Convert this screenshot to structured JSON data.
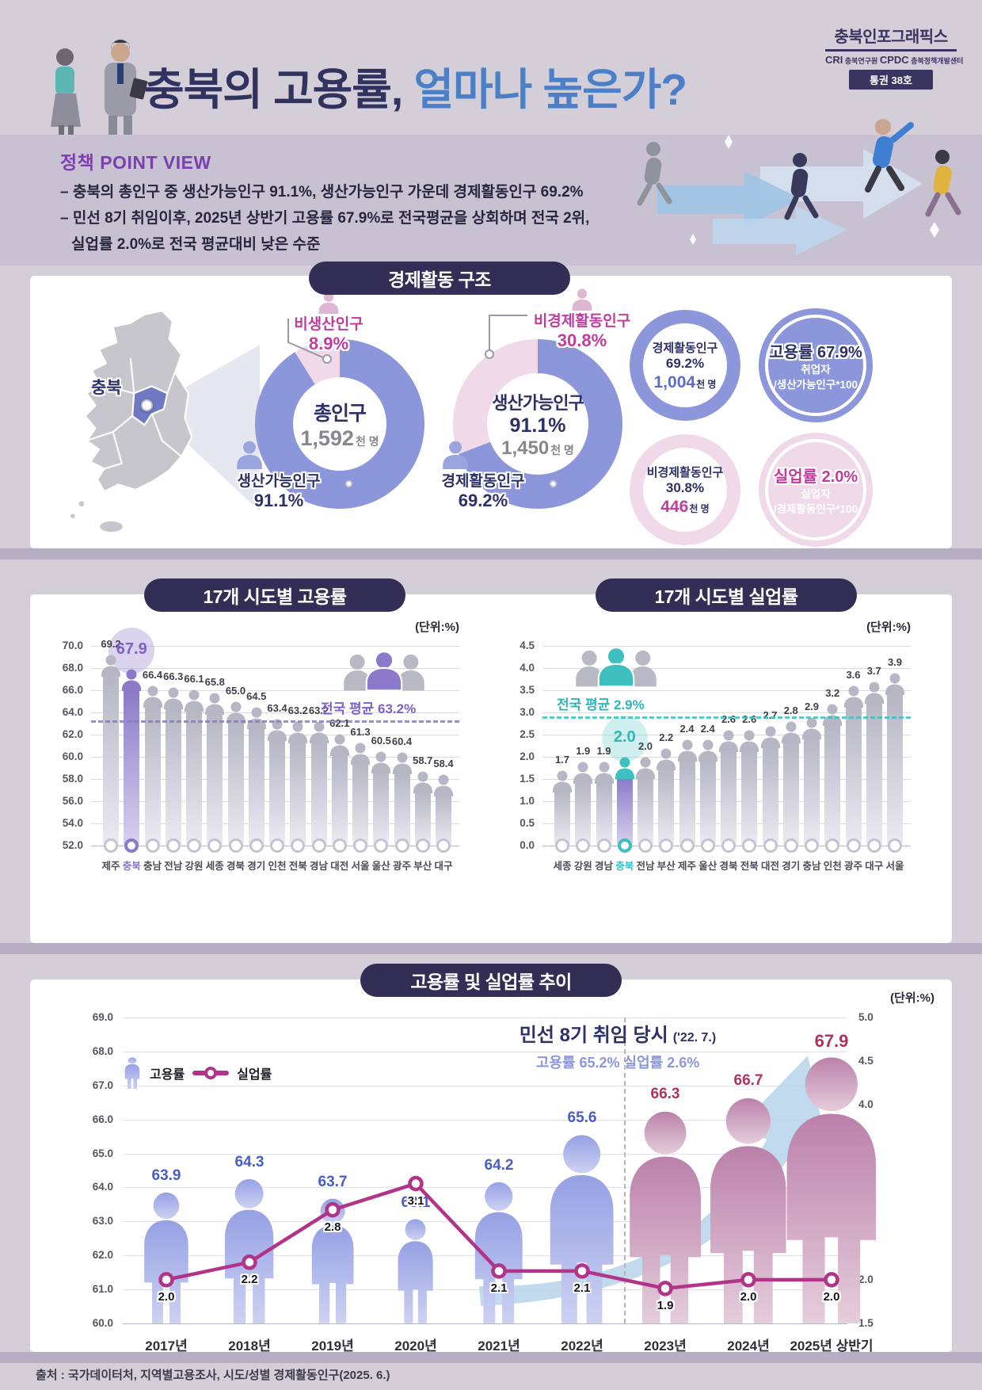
{
  "header": {
    "title_dark": "충북의 고용률,",
    "title_blue": " 얼마나 높은가?",
    "logo_title": "충북인포그래픽스",
    "logo_cri": "CRI",
    "logo_cri_sub": "충북연구원",
    "logo_cpdc": "CPDC",
    "logo_cpdc_sub": "충북정책개발센터",
    "issue_badge": "통권 38호"
  },
  "policy": {
    "heading": "정책 POINT VIEW",
    "lines": [
      "– 충북의 총인구 중 생산가능인구 91.1%, 생산가능인구 가운데 경제활동인구 69.2%",
      "– 민선 8기 취임이후, 2025년 상반기 고용률 67.9%로 전국평균을 상회하며 전국 2위,",
      "실업률 2.0%로 전국 평균대비 낮은 수준"
    ]
  },
  "structure": {
    "section_title": "경제활동 구조",
    "map_label": "충북",
    "donut_total": {
      "center_title": "총인구",
      "center_value": "1,592",
      "center_unit": "천 명",
      "pink_label": "비생산인구",
      "pink_value": "8.9%",
      "pink_pct": 8.9,
      "blue_label": "생산가능인구",
      "blue_value": "91.1%",
      "blue_pct": 91.1
    },
    "donut_working": {
      "center_title": "생산가능인구",
      "center_pct": "91.1%",
      "center_value": "1,450",
      "center_unit": "천 명",
      "pink_label": "비경제활동인구",
      "pink_value": "30.8%",
      "pink_pct": 30.8,
      "blue_label": "경제활동인구",
      "blue_value": "69.2%",
      "blue_pct": 69.2
    },
    "stats": [
      {
        "label": "경제활동인구",
        "pct": "69.2%",
        "value": "1,004",
        "unit": "천 명"
      },
      {
        "title": "고용률 67.9%",
        "sub1": "취업자",
        "sub2": "/생산가능인구*100"
      },
      {
        "label": "비경제활동인구",
        "pct": "30.8%",
        "value": "446",
        "unit": "천 명"
      },
      {
        "title": "실업률 2.0%",
        "sub1": "실업자",
        "sub2": "/경제활동인구*100"
      }
    ]
  },
  "chart_data": [
    {
      "type": "bar",
      "title": "17개 시도별 고용률",
      "unit_label": "(단위:%)",
      "categories": [
        "제주",
        "충북",
        "충남",
        "전남",
        "강원",
        "세종",
        "경북",
        "경기",
        "인천",
        "전북",
        "경남",
        "대전",
        "서울",
        "울산",
        "광주",
        "부산",
        "대구"
      ],
      "values": [
        69.2,
        67.9,
        66.4,
        66.3,
        66.1,
        65.8,
        65.0,
        64.5,
        63.4,
        63.2,
        63.2,
        62.1,
        61.3,
        60.5,
        60.4,
        58.7,
        58.4
      ],
      "highlight": "충북",
      "average": {
        "value": 63.2,
        "label": "전국 평균 63.2%"
      },
      "ylim": [
        52.0,
        70.0
      ],
      "ystep": 2.0,
      "grid": true,
      "legend_position": "none"
    },
    {
      "type": "bar",
      "title": "17개 시도별 실업률",
      "unit_label": "(단위:%)",
      "categories": [
        "세종",
        "강원",
        "경남",
        "충북",
        "전남",
        "부산",
        "제주",
        "울산",
        "경북",
        "전북",
        "대전",
        "경기",
        "충남",
        "인천",
        "광주",
        "대구",
        "서울"
      ],
      "values": [
        1.7,
        1.9,
        1.9,
        2.0,
        2.0,
        2.2,
        2.4,
        2.4,
        2.6,
        2.6,
        2.7,
        2.8,
        2.9,
        3.2,
        3.6,
        3.7,
        3.9
      ],
      "highlight": "충북",
      "average": {
        "value": 2.9,
        "label": "전국 평균 2.9%"
      },
      "ylim": [
        0.0,
        4.5
      ],
      "ystep": 0.5,
      "grid": true,
      "legend_position": "none"
    },
    {
      "type": "mixed",
      "title": "고용률 및 실업률 추이",
      "unit_label": "(단위:%)",
      "categories": [
        "2017년",
        "2018년",
        "2019년",
        "2020년",
        "2021년",
        "2022년",
        "2023년",
        "2024년",
        "2025년 상반기"
      ],
      "series": [
        {
          "name": "고용률",
          "type": "pictogram-bar",
          "axis": "left",
          "values": [
            63.9,
            64.3,
            63.7,
            63.1,
            64.2,
            65.6,
            66.3,
            66.7,
            67.9
          ]
        },
        {
          "name": "실업률",
          "type": "line",
          "axis": "right",
          "values": [
            2.0,
            2.2,
            2.8,
            3.1,
            2.1,
            2.1,
            1.9,
            2.0,
            2.0
          ]
        }
      ],
      "left_ylim": [
        60.0,
        69.0
      ],
      "left_ystep": 1.0,
      "right_ylim": [
        1.5,
        5.0
      ],
      "right_ystep": 0.5,
      "annotation": {
        "title": "민선 8기 취임 당시",
        "date": "('22. 7.)",
        "sub": "고용률 65.2% 실업률 2.6%"
      },
      "phase_split_after": "2022년",
      "legend": [
        "고용률",
        "실업률"
      ],
      "grid": true
    }
  ],
  "footer": {
    "source": "출처 : 국가데이터처, 지역별고용조사, 시도/성별 경제활동인구(2025. 6.)"
  },
  "colors": {
    "navy_pill": "#322e55",
    "periwinkle": "#8b97da",
    "pink": "#f0d9e9",
    "magenta": "#c03c9e",
    "purple_accent": "#8a7ac9",
    "teal_accent": "#3fc0c0",
    "trend_line": "#b23488",
    "title_blue": "#4b7fc7",
    "title_navy": "#32325e"
  }
}
